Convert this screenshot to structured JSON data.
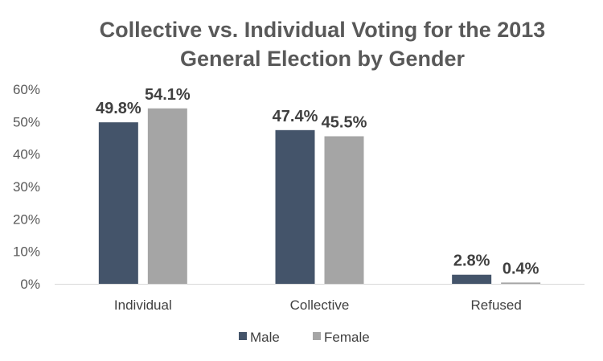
{
  "chart_data": {
    "type": "bar",
    "title_lines": [
      "Collective vs. Individual Voting for the 2013",
      "General Election by Gender"
    ],
    "categories": [
      "Individual",
      "Collective",
      "Refused"
    ],
    "series": [
      {
        "name": "Male",
        "values": [
          49.8,
          47.4,
          2.8
        ],
        "labels": [
          "49.8%",
          "47.4%",
          "2.8%"
        ],
        "color": "#44546a"
      },
      {
        "name": "Female",
        "values": [
          54.1,
          45.5,
          0.4
        ],
        "labels": [
          "54.1%",
          "45.5%",
          "0.4%"
        ],
        "color": "#a5a5a5"
      }
    ],
    "y_ticks": [
      "0%",
      "10%",
      "20%",
      "30%",
      "40%",
      "50%",
      "60%"
    ],
    "ylim": [
      0,
      60
    ],
    "grid": false,
    "legend_position": "bottom"
  }
}
